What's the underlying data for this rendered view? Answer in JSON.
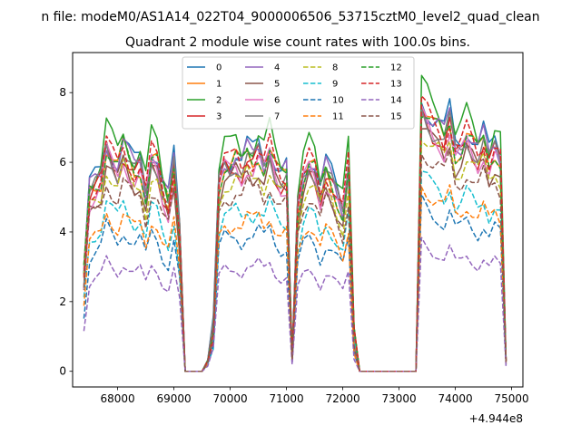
{
  "chart_data": {
    "type": "line",
    "suptitle": "n file: modeM0/AS1A14_022T04_9000006506_53715cztM0_level2_quad_clean",
    "title": "Quadrant 2 module wise count rates with 100.0s bins.",
    "xlabel": "",
    "ylabel": "",
    "offset_text": "+4.944e8",
    "xlim": [
      67200,
      75200
    ],
    "ylim": [
      -0.45,
      9.15
    ],
    "x_ticks": [
      68000,
      69000,
      70000,
      71000,
      72000,
      73000,
      74000,
      75000
    ],
    "y_ticks": [
      0,
      2,
      4,
      6,
      8
    ],
    "legend_position": "upper-center",
    "colors": [
      "#1f77b4",
      "#ff7f0e",
      "#2ca02c",
      "#d62728",
      "#9467bd",
      "#8c564b",
      "#e377c2",
      "#7f7f7f",
      "#bcbd22",
      "#17becf",
      "#1f77b4",
      "#ff7f0e",
      "#2ca02c",
      "#d62728",
      "#9467bd",
      "#8c564b"
    ],
    "x": [
      67400,
      67500,
      67600,
      67700,
      67800,
      67900,
      68000,
      68100,
      68200,
      68300,
      68400,
      68500,
      68600,
      68700,
      68800,
      68900,
      69000,
      69100,
      69200,
      69300,
      69400,
      69500,
      69600,
      69700,
      69800,
      69900,
      70000,
      70100,
      70200,
      70300,
      70400,
      70500,
      70600,
      70700,
      70800,
      70900,
      71000,
      71100,
      71200,
      71300,
      71400,
      71500,
      71600,
      71700,
      71800,
      71900,
      72000,
      72100,
      72200,
      72300,
      72400,
      72500,
      72600,
      72700,
      72800,
      72900,
      73000,
      73100,
      73200,
      73300,
      73400,
      73500,
      73600,
      73700,
      73800,
      73900,
      74000,
      74100,
      74200,
      74300,
      74400,
      74500,
      74600,
      74700,
      74800,
      74900
    ],
    "base": [
      2.7,
      5.1,
      5.3,
      5.5,
      6.5,
      6.1,
      5.8,
      6.4,
      6.0,
      5.7,
      5.9,
      5.1,
      6.2,
      6.0,
      5.2,
      4.8,
      5.9,
      4.0,
      0.0,
      0.0,
      0.0,
      0.0,
      0.3,
      1.2,
      5.4,
      6.0,
      5.9,
      6.1,
      5.8,
      6.2,
      6.0,
      6.3,
      5.9,
      6.4,
      5.8,
      5.5,
      5.6,
      0.4,
      4.7,
      5.6,
      6.0,
      5.8,
      5.1,
      5.7,
      5.4,
      5.0,
      4.6,
      5.9,
      1.0,
      0.0,
      0.0,
      0.0,
      0.0,
      0.0,
      0.0,
      0.0,
      0.0,
      0.0,
      0.0,
      0.0,
      7.6,
      7.3,
      7.0,
      6.9,
      6.6,
      7.2,
      6.3,
      6.4,
      6.8,
      6.5,
      6.2,
      6.6,
      6.0,
      6.4,
      6.1,
      0.3
    ],
    "series": [
      {
        "name": "0",
        "scale": 1.04
      },
      {
        "name": "1",
        "scale": 1.0
      },
      {
        "name": "2",
        "scale": 1.08
      },
      {
        "name": "3",
        "scale": 0.98
      },
      {
        "name": "4",
        "scale": 1.02
      },
      {
        "name": "5",
        "scale": 0.93
      },
      {
        "name": "6",
        "scale": 0.96
      },
      {
        "name": "7",
        "scale": 0.99
      },
      {
        "name": "8",
        "scale": 0.91
      },
      {
        "name": "9",
        "scale": 0.75
      },
      {
        "name": "10",
        "scale": 0.64
      },
      {
        "name": "11",
        "scale": 0.71
      },
      {
        "name": "12",
        "scale": 1.0
      },
      {
        "name": "13",
        "scale": 1.01
      },
      {
        "name": "14",
        "scale": 0.49
      },
      {
        "name": "15",
        "scale": 0.85
      }
    ]
  }
}
